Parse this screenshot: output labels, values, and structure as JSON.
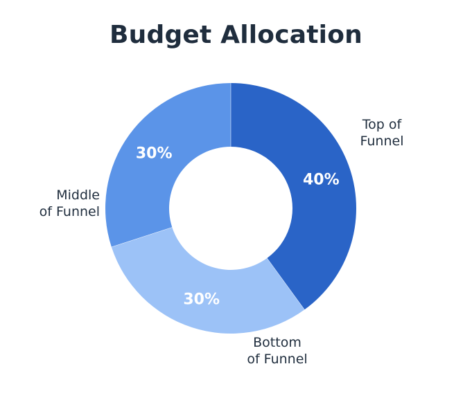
{
  "chart_data": {
    "type": "pie",
    "title": "Budget Allocation",
    "donut": true,
    "slices": [
      {
        "label_lines": [
          "Top of",
          "Funnel"
        ],
        "value": 40,
        "display": "40%",
        "color": "#2a64c7"
      },
      {
        "label_lines": [
          "Bottom",
          "of Funnel"
        ],
        "value": 30,
        "display": "30%",
        "color": "#9cc2f7"
      },
      {
        "label_lines": [
          "Middle",
          "of Funnel"
        ],
        "value": 30,
        "display": "30%",
        "color": "#5b94e8"
      }
    ]
  }
}
